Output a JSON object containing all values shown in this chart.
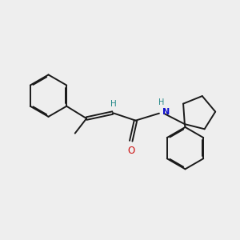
{
  "bg_color": "#eeeeee",
  "bond_color": "#1a1a1a",
  "N_color": "#1111cc",
  "O_color": "#cc1111",
  "H_color": "#228888",
  "lw": 1.4,
  "dbo": 0.055,
  "benz_r": 0.82,
  "cp_r": 0.68,
  "xlim": [
    0.2,
    9.5
  ],
  "ylim": [
    2.0,
    8.8
  ]
}
